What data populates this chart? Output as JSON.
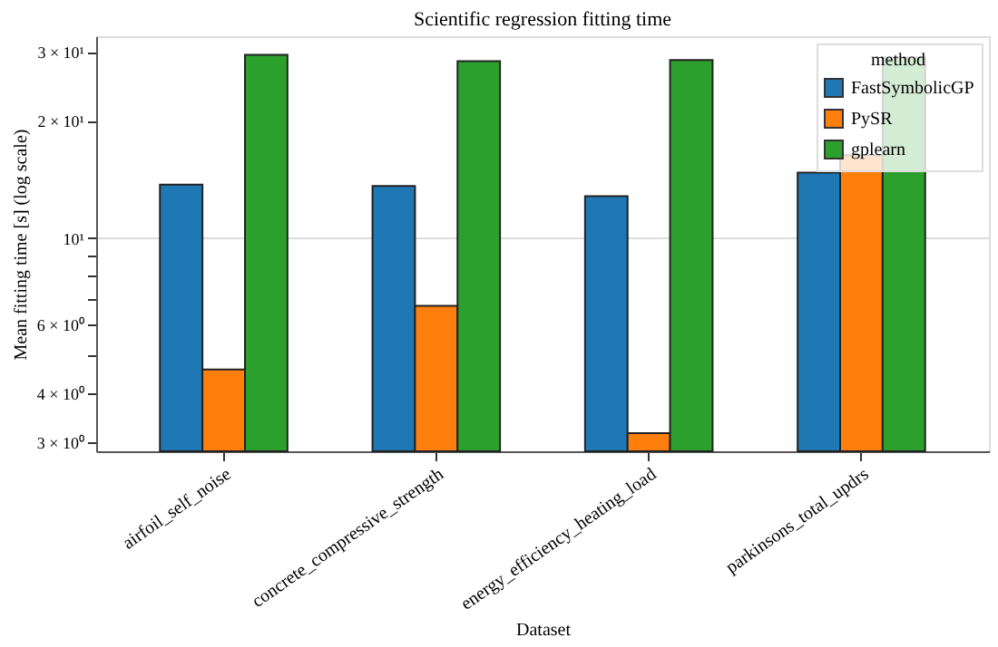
{
  "chart_data": {
    "type": "bar",
    "title": "Scientific regression fitting time",
    "xlabel": "Dataset",
    "ylabel": "Mean fitting time [s] (log scale)",
    "legend_title": "method",
    "categories": [
      "airfoil_self_noise",
      "concrete_compressive_strength",
      "energy_efficiency_heating_load",
      "parkinsons_total_updrs"
    ],
    "series": [
      {
        "name": "FastSymbolicGP",
        "color": "#1f77b4",
        "values": [
          13.7,
          13.6,
          12.8,
          14.7
        ]
      },
      {
        "name": "PySR",
        "color": "#ff7f0e",
        "values": [
          4.6,
          6.7,
          3.16,
          16.3
        ]
      },
      {
        "name": "gplearn",
        "color": "#2ca02c",
        "values": [
          29.5,
          28.4,
          28.6,
          29
        ]
      }
    ],
    "log": true,
    "ylim": [
      2.84,
      32.9
    ],
    "yticks": [
      {
        "value": 3,
        "label": "3 × 10⁰"
      },
      {
        "value": 4,
        "label": "4 × 10⁰"
      },
      {
        "value": 5,
        "label": null
      },
      {
        "value": 6,
        "label": "6 × 10⁰"
      },
      {
        "value": 7,
        "label": null
      },
      {
        "value": 8,
        "label": null
      },
      {
        "value": 9,
        "label": null
      },
      {
        "value": 10,
        "label": "10¹"
      },
      {
        "value": 20,
        "label": "2 × 10¹"
      },
      {
        "value": 30,
        "label": "3 × 10¹"
      }
    ],
    "grid": "y",
    "legend": "top right"
  }
}
